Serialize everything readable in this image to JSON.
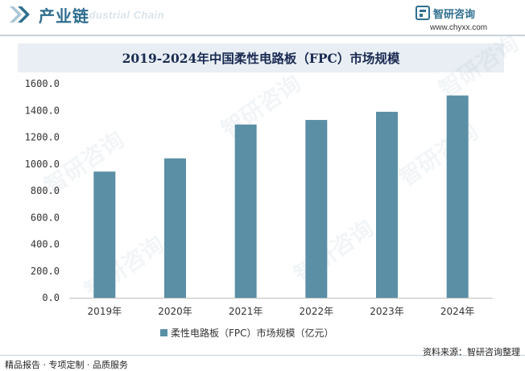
{
  "header": {
    "title": "产业链",
    "subtitle": "Industrial Chain",
    "brand_name": "智研咨询",
    "brand_url": "www.chyxx.com"
  },
  "chart_data": {
    "type": "bar",
    "title": "2019-2024年中国柔性电路板（FPC）市场规模",
    "categories": [
      "2019年",
      "2020年",
      "2021年",
      "2022年",
      "2023年",
      "2024年"
    ],
    "series": [
      {
        "name": "柔性电路板（FPC）市场规模（亿元）",
        "values": [
          943,
          1042,
          1295,
          1329,
          1390,
          1512
        ],
        "color": "#5a8fa6"
      }
    ],
    "yticks": [
      "0.0",
      "200.0",
      "400.0",
      "600.0",
      "800.0",
      "1000.0",
      "1200.0",
      "1400.0",
      "1600.0"
    ],
    "ylim": [
      0,
      1600
    ],
    "legend_position": "bottom",
    "grid": false
  },
  "watermark": "智研咨询",
  "footer": {
    "left": "精品报告 · 专项定制 · 品质服务",
    "right": "资料来源：智研咨询整理"
  }
}
